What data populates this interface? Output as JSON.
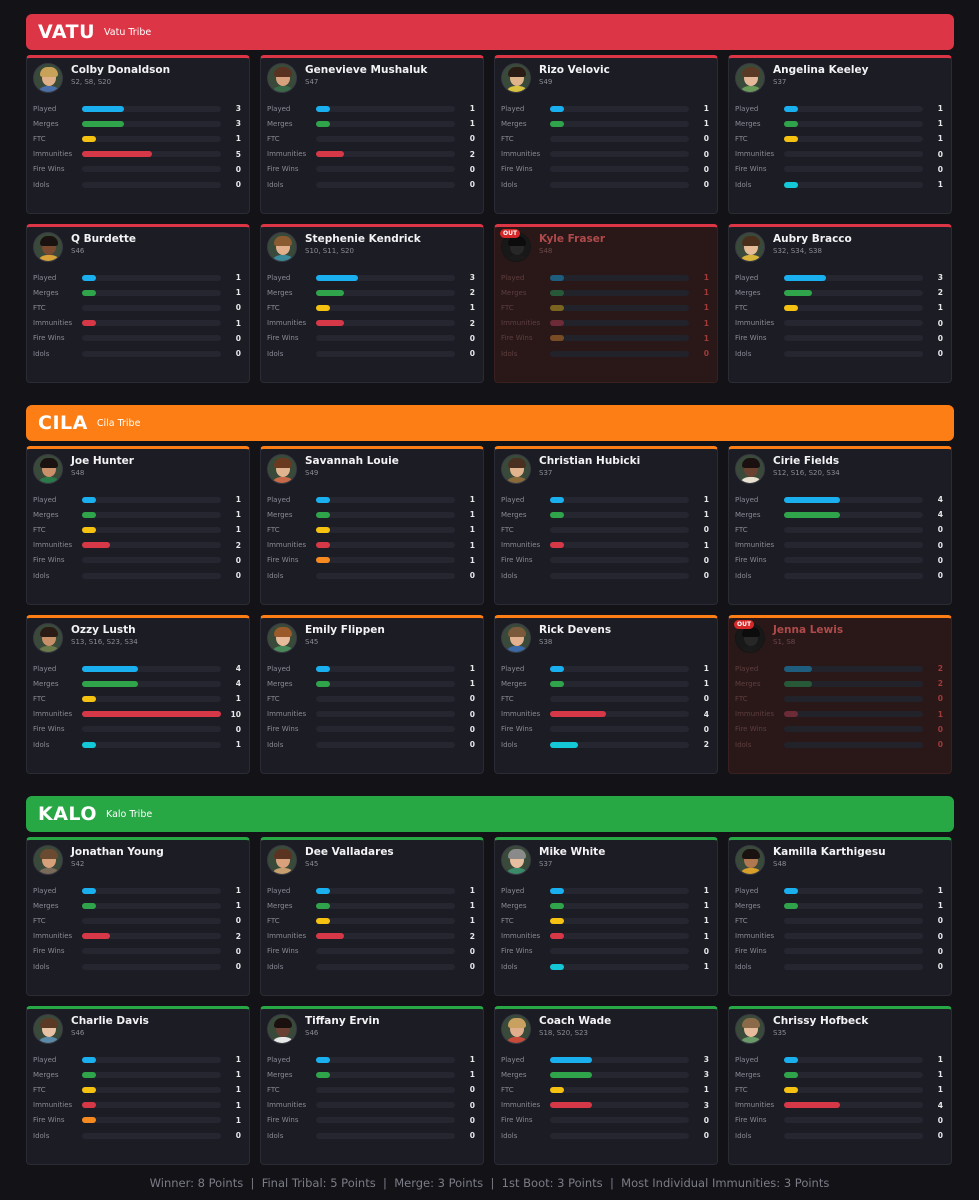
{
  "stat_labels": [
    "Played",
    "Merges",
    "FTC",
    "Immunities",
    "Fire Wins",
    "Idols"
  ],
  "stat_colors": [
    "#1ab0ef",
    "#2fa44a",
    "#f5c211",
    "#d63848",
    "#f6891f",
    "#14c8d8"
  ],
  "stat_scale_max": 10,
  "tribes": [
    {
      "name": "VATU",
      "subtitle": "Vatu Tribe",
      "color": "#dc3545",
      "players": [
        {
          "name": "Colby Donaldson",
          "seasons": "S2, S8, S20",
          "out": false,
          "stats": [
            3,
            3,
            1,
            5,
            0,
            0
          ],
          "avatar": {
            "skin": "#e0b08a",
            "hair": "#c9a25a",
            "shirt": "#4a6fa8"
          }
        },
        {
          "name": "Genevieve Mushaluk",
          "seasons": "S47",
          "out": false,
          "stats": [
            1,
            1,
            0,
            2,
            0,
            0
          ],
          "avatar": {
            "skin": "#d9a27f",
            "hair": "#5a3222",
            "shirt": "#3a6a4a"
          }
        },
        {
          "name": "Rizo Velovic",
          "seasons": "S49",
          "out": false,
          "stats": [
            1,
            1,
            0,
            0,
            0,
            0
          ],
          "avatar": {
            "skin": "#e0b48a",
            "hair": "#2a1c14",
            "shirt": "#d8c240"
          }
        },
        {
          "name": "Angelina Keeley",
          "seasons": "S37",
          "out": false,
          "stats": [
            1,
            1,
            1,
            0,
            0,
            1
          ],
          "avatar": {
            "skin": "#e5b899",
            "hair": "#5a3a24",
            "shirt": "#6a9a5a"
          }
        },
        {
          "name": "Q Burdette",
          "seasons": "S46",
          "out": false,
          "stats": [
            1,
            1,
            0,
            1,
            0,
            0
          ],
          "avatar": {
            "skin": "#7a4a30",
            "hair": "#1a1210",
            "shirt": "#d8a23a"
          }
        },
        {
          "name": "Stephenie Kendrick",
          "seasons": "S10, S11, S20",
          "out": false,
          "stats": [
            3,
            2,
            1,
            2,
            0,
            0
          ],
          "avatar": {
            "skin": "#e3b08e",
            "hair": "#8a5a30",
            "shirt": "#3a8a9a"
          }
        },
        {
          "name": "Kyle Fraser",
          "seasons": "S48",
          "out": true,
          "out_label": "OUT",
          "stats": [
            1,
            1,
            1,
            1,
            1,
            0
          ],
          "avatar": {
            "skin": "#8a6a50",
            "hair": "#2a2018",
            "shirt": "#4a4a4a"
          }
        },
        {
          "name": "Aubry Bracco",
          "seasons": "S32, S34, S38",
          "out": false,
          "stats": [
            3,
            2,
            1,
            0,
            0,
            0
          ],
          "avatar": {
            "skin": "#e6bb98",
            "hair": "#4a2e1c",
            "shirt": "#d8b43a"
          }
        }
      ]
    },
    {
      "name": "CILA",
      "subtitle": "Cila Tribe",
      "color": "#fd7e14",
      "players": [
        {
          "name": "Joe Hunter",
          "seasons": "S48",
          "out": false,
          "stats": [
            1,
            1,
            1,
            2,
            0,
            0
          ],
          "avatar": {
            "skin": "#c9906a",
            "hair": "#1a1210",
            "shirt": "#2a7a4a"
          }
        },
        {
          "name": "Savannah Louie",
          "seasons": "S49",
          "out": false,
          "stats": [
            1,
            1,
            1,
            1,
            1,
            0
          ],
          "avatar": {
            "skin": "#e0b490",
            "hair": "#6a3a20",
            "shirt": "#c86a4a"
          }
        },
        {
          "name": "Christian Hubicki",
          "seasons": "S37",
          "out": false,
          "stats": [
            1,
            1,
            0,
            1,
            0,
            0
          ],
          "avatar": {
            "skin": "#e2b48e",
            "hair": "#4a3020",
            "shirt": "#8a6a3a"
          }
        },
        {
          "name": "Cirie Fields",
          "seasons": "S12, S16, S20, S34",
          "out": false,
          "stats": [
            4,
            4,
            0,
            0,
            0,
            0
          ],
          "avatar": {
            "skin": "#6a4030",
            "hair": "#1a1010",
            "shirt": "#e8e0d0"
          }
        },
        {
          "name": "Ozzy Lusth",
          "seasons": "S13, S16, S23, S34",
          "out": false,
          "stats": [
            4,
            4,
            1,
            10,
            0,
            1
          ],
          "avatar": {
            "skin": "#c89068",
            "hair": "#2a1c14",
            "shirt": "#6a7a4a"
          }
        },
        {
          "name": "Emily Flippen",
          "seasons": "S45",
          "out": false,
          "stats": [
            1,
            1,
            0,
            0,
            0,
            0
          ],
          "avatar": {
            "skin": "#e8bc9a",
            "hair": "#9a5a2a",
            "shirt": "#4a8a5a"
          }
        },
        {
          "name": "Rick Devens",
          "seasons": "S38",
          "out": false,
          "stats": [
            1,
            1,
            0,
            4,
            0,
            2
          ],
          "avatar": {
            "skin": "#e2b290",
            "hair": "#7a5a3a",
            "shirt": "#3a6aa8"
          }
        },
        {
          "name": "Jenna Lewis",
          "seasons": "S1, S8",
          "out": true,
          "out_label": "OUT",
          "stats": [
            2,
            2,
            0,
            1,
            0,
            0
          ],
          "avatar": {
            "skin": "#8a6a58",
            "hair": "#2a2018",
            "shirt": "#4a4a4a"
          }
        }
      ]
    },
    {
      "name": "KALO",
      "subtitle": "Kalo Tribe",
      "color": "#28a745",
      "players": [
        {
          "name": "Jonathan Young",
          "seasons": "S42",
          "out": false,
          "stats": [
            1,
            1,
            0,
            2,
            0,
            0
          ],
          "avatar": {
            "skin": "#d6a07a",
            "hair": "#6a4a30",
            "shirt": "#7a6a5a"
          }
        },
        {
          "name": "Dee Valladares",
          "seasons": "S45",
          "out": false,
          "stats": [
            1,
            1,
            1,
            2,
            0,
            0
          ],
          "avatar": {
            "skin": "#d9a27c",
            "hair": "#5a3420",
            "shirt": "#c8a070"
          }
        },
        {
          "name": "Mike White",
          "seasons": "S37",
          "out": false,
          "stats": [
            1,
            1,
            1,
            1,
            0,
            1
          ],
          "avatar": {
            "skin": "#e6bea0",
            "hair": "#8a8a8a",
            "shirt": "#3a8a6a"
          }
        },
        {
          "name": "Kamilla Karthigesu",
          "seasons": "S48",
          "out": false,
          "stats": [
            1,
            1,
            0,
            0,
            0,
            0
          ],
          "avatar": {
            "skin": "#b07850",
            "hair": "#1a1210",
            "shirt": "#d8a02a"
          }
        },
        {
          "name": "Charlie Davis",
          "seasons": "S46",
          "out": false,
          "stats": [
            1,
            1,
            1,
            1,
            1,
            0
          ],
          "avatar": {
            "skin": "#e8c2a4",
            "hair": "#5a3a24",
            "shirt": "#5a8aa8"
          }
        },
        {
          "name": "Tiffany Ervin",
          "seasons": "S46",
          "out": false,
          "stats": [
            1,
            1,
            0,
            0,
            0,
            0
          ],
          "avatar": {
            "skin": "#6a4032",
            "hair": "#1a1010",
            "shirt": "#e8e8e8"
          }
        },
        {
          "name": "Coach Wade",
          "seasons": "S18, S20, S23",
          "out": false,
          "stats": [
            3,
            3,
            1,
            3,
            0,
            0
          ],
          "avatar": {
            "skin": "#e0ae8c",
            "hair": "#c8a060",
            "shirt": "#c84a3a"
          }
        },
        {
          "name": "Chrissy Hofbeck",
          "seasons": "S35",
          "out": false,
          "stats": [
            1,
            1,
            1,
            4,
            0,
            0
          ],
          "avatar": {
            "skin": "#e6bc9c",
            "hair": "#8a6a48",
            "shirt": "#6a9a6a"
          }
        }
      ]
    }
  ],
  "footer": {
    "items": [
      "Winner: 8 Points",
      "Final Tribal: 5 Points",
      "Merge: 3 Points",
      "1st Boot: 3 Points",
      "Most Individual Immunities: 3 Points"
    ],
    "separator": "  |  "
  }
}
